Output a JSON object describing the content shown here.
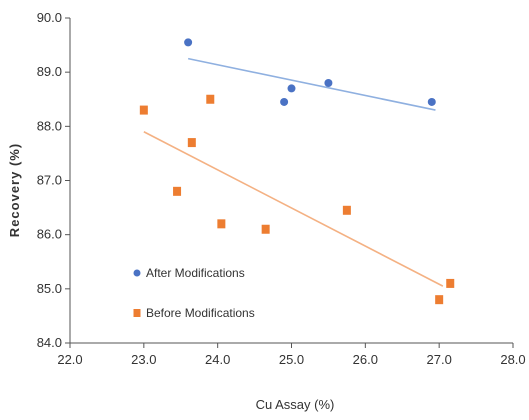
{
  "chart_data": {
    "type": "scatter",
    "title": "",
    "xlabel": "Cu Assay (%)",
    "ylabel": "Recovery (%)",
    "xlim": [
      22.0,
      28.0
    ],
    "ylim": [
      84.0,
      90.0
    ],
    "x_ticks": [
      "22.0",
      "23.0",
      "24.0",
      "25.0",
      "26.0",
      "27.0",
      "28.0"
    ],
    "y_ticks": [
      "84.0",
      "85.0",
      "86.0",
      "87.0",
      "88.0",
      "89.0",
      "90.0"
    ],
    "grid": false,
    "legend_position": "bottom-left",
    "series": [
      {
        "name": "After Modifications",
        "color": "#4a72c4",
        "marker": "circle",
        "points": [
          {
            "x": 23.6,
            "y": 89.55
          },
          {
            "x": 24.9,
            "y": 88.45
          },
          {
            "x": 25.0,
            "y": 88.7
          },
          {
            "x": 25.5,
            "y": 88.8
          },
          {
            "x": 26.9,
            "y": 88.45
          }
        ],
        "trendline": {
          "x": [
            23.6,
            26.95
          ],
          "y": [
            89.25,
            88.3
          ],
          "color": "#8fb0e0"
        }
      },
      {
        "name": "Before Modifications",
        "color": "#ed7d31",
        "marker": "square",
        "points": [
          {
            "x": 23.0,
            "y": 88.3
          },
          {
            "x": 23.45,
            "y": 86.8
          },
          {
            "x": 23.65,
            "y": 87.7
          },
          {
            "x": 23.9,
            "y": 88.5
          },
          {
            "x": 24.05,
            "y": 86.2
          },
          {
            "x": 24.65,
            "y": 86.1
          },
          {
            "x": 25.75,
            "y": 86.45
          },
          {
            "x": 27.0,
            "y": 84.8
          },
          {
            "x": 27.15,
            "y": 85.1
          }
        ],
        "trendline": {
          "x": [
            23.0,
            27.05
          ],
          "y": [
            87.9,
            85.05
          ],
          "color": "#f4b183"
        }
      }
    ]
  }
}
